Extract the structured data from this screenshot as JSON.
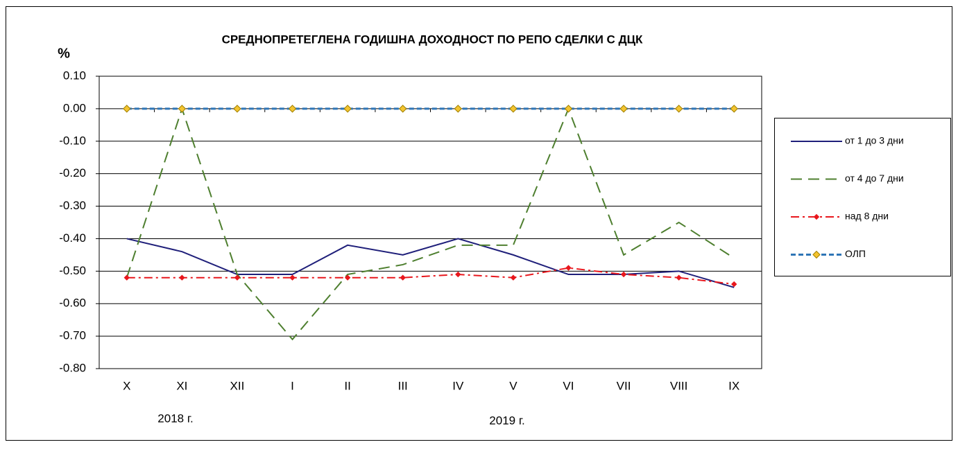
{
  "chart_data": {
    "type": "line",
    "title": "СРЕДНОПРЕТЕГЛЕНА ГОДИШНА ДОХОДНОСТ ПО РЕПО СДЕЛКИ С ДЦК",
    "y_label": "%",
    "categories": [
      "X",
      "XI",
      "XII",
      "I",
      "II",
      "III",
      "IV",
      "V",
      "VI",
      "VII",
      "VIII",
      "IX"
    ],
    "annotations": [
      "2018 г.",
      "2019 г."
    ],
    "series": [
      {
        "name": "от 1 до 3 дни",
        "color": "#1f1f7a",
        "dash": "none",
        "marker": "none",
        "values": [
          -0.4,
          -0.44,
          -0.51,
          -0.51,
          -0.42,
          -0.45,
          -0.4,
          -0.45,
          -0.51,
          -0.51,
          -0.5,
          -0.55
        ]
      },
      {
        "name": "от 4 до 7 дни",
        "color": "#4e7f2f",
        "dash": "16,9",
        "marker": "none",
        "values": [
          -0.52,
          0.0,
          -0.51,
          -0.71,
          -0.51,
          -0.48,
          -0.42,
          -0.42,
          0.0,
          -0.45,
          -0.35,
          -0.46
        ]
      },
      {
        "name": "над 8 дни",
        "color": "#e8171d",
        "dash": "12,5,3,5",
        "marker": "diamond",
        "values": [
          -0.52,
          -0.52,
          -0.52,
          -0.52,
          -0.52,
          -0.52,
          -0.51,
          -0.52,
          -0.49,
          -0.51,
          -0.52,
          -0.54
        ]
      },
      {
        "name": "ОЛП",
        "color": "#2e75b6",
        "dash": "7,4",
        "marker": "diamond",
        "values": [
          0.0,
          0.0,
          0.0,
          0.0,
          0.0,
          0.0,
          0.0,
          0.0,
          0.0,
          0.0,
          0.0,
          0.0
        ]
      }
    ],
    "ylim": [
      -0.8,
      0.1
    ],
    "yticks": [
      {
        "value": 0.1,
        "label": "0.10"
      },
      {
        "value": 0,
        "label": "0.00"
      },
      {
        "value": -0.1,
        "label": "-0.10"
      },
      {
        "value": -0.2,
        "label": "-0.20"
      },
      {
        "value": -0.3,
        "label": "-0.30"
      },
      {
        "value": -0.4,
        "label": "-0.40"
      },
      {
        "value": -0.5,
        "label": "-0.50"
      },
      {
        "value": -0.6,
        "label": "-0.60"
      },
      {
        "value": -0.7,
        "label": "-0.70"
      },
      {
        "value": -0.8,
        "label": "-0.80"
      }
    ],
    "grid": true,
    "legend": "right"
  }
}
